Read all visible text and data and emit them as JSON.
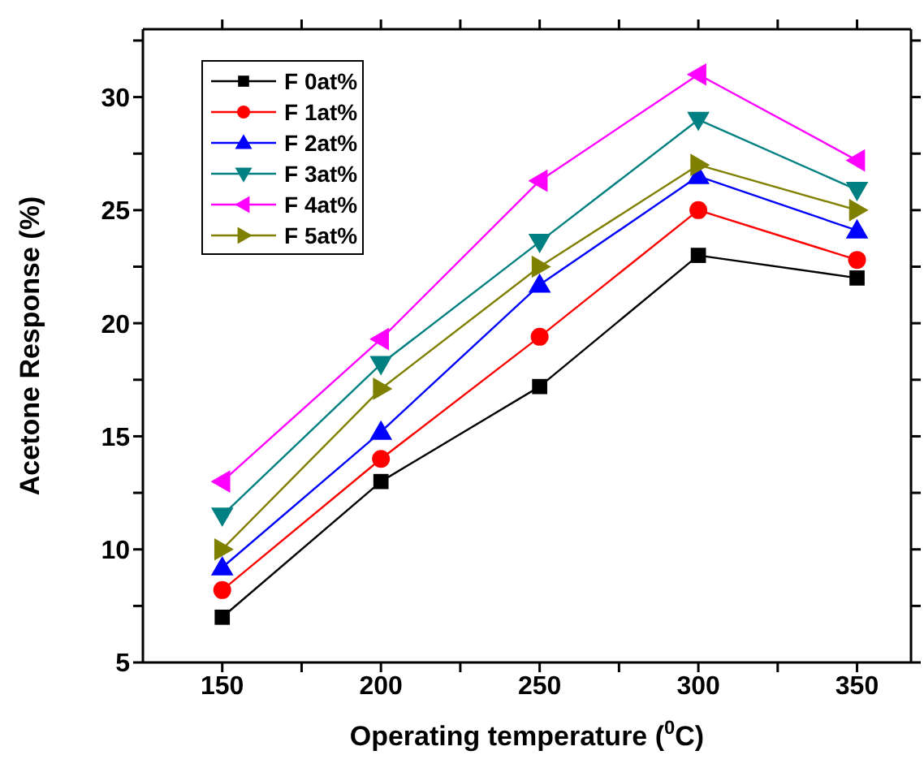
{
  "chart_data": {
    "type": "line",
    "xlabel": "Operating temperature ($^{0}$C)",
    "ylabel": "Acetone Response (%)",
    "x": [
      150,
      200,
      250,
      300,
      350
    ],
    "xlim": [
      125,
      367
    ],
    "xticks": [
      150,
      {
        "value": 175,
        "label": null
      },
      200,
      {
        "value": 225,
        "label": null
      },
      250,
      {
        "value": 275,
        "label": null
      },
      300,
      {
        "value": 325,
        "label": null
      },
      350
    ],
    "ylim": [
      5,
      33
    ],
    "yticks": [
      5,
      {
        "value": 7.5,
        "label": null
      },
      10,
      {
        "value": 12.5,
        "label": null
      },
      15,
      {
        "value": 17.5,
        "label": null
      },
      20,
      {
        "value": 22.5,
        "label": null
      },
      25,
      {
        "value": 27.5,
        "label": null
      },
      30,
      {
        "value": 32.5,
        "label": null
      }
    ],
    "legend": "top left",
    "series": [
      {
        "name": "F 0at%",
        "color": "#000000",
        "marker": "square",
        "values": [
          7,
          13,
          17.2,
          23,
          22
        ]
      },
      {
        "name": "F 1at%",
        "color": "#ff0000",
        "marker": "circle",
        "values": [
          8.2,
          14,
          19.4,
          25,
          22.8
        ]
      },
      {
        "name": "F 2at%",
        "color": "#0000ff",
        "marker": "triangle",
        "values": [
          9.2,
          15.2,
          21.7,
          26.5,
          24.1
        ]
      },
      {
        "name": "F 3at%",
        "color": "#008080",
        "marker": "triangle-down",
        "values": [
          11.5,
          18.2,
          23.6,
          29,
          25.9
        ]
      },
      {
        "name": "F 4at%",
        "color": "#ff00ff",
        "marker": "triangle-left",
        "values": [
          13,
          19.3,
          26.3,
          31,
          27.2
        ]
      },
      {
        "name": "F 5at%",
        "color": "#808000",
        "marker": "triangle-right",
        "values": [
          10,
          17.1,
          22.5,
          27,
          25
        ]
      }
    ]
  }
}
